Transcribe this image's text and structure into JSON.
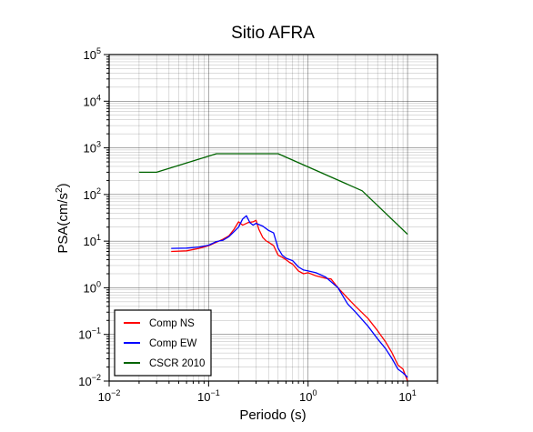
{
  "chart_data": {
    "type": "line",
    "title": "Sitio AFRA",
    "xlabel": "Periodo (s)",
    "ylabel": "PSA(cm/s²)",
    "ylabel_base": "PSA(cm/s",
    "ylabel_sup": "2",
    "ylabel_close": ")",
    "xscale": "log",
    "yscale": "log",
    "xlim": [
      0.01,
      20
    ],
    "ylim": [
      0.01,
      100000
    ],
    "grid": true,
    "legend_position": "bottom-left",
    "x_ticks": [
      {
        "base": "10",
        "exp": "−2",
        "value": 0.01
      },
      {
        "base": "10",
        "exp": "−1",
        "value": 0.1
      },
      {
        "base": "10",
        "exp": "0",
        "value": 1
      },
      {
        "base": "10",
        "exp": "1",
        "value": 10
      }
    ],
    "y_ticks": [
      {
        "base": "10",
        "exp": "−2",
        "value": 0.01
      },
      {
        "base": "10",
        "exp": "−1",
        "value": 0.1
      },
      {
        "base": "10",
        "exp": "0",
        "value": 1
      },
      {
        "base": "10",
        "exp": "1",
        "value": 10
      },
      {
        "base": "10",
        "exp": "2",
        "value": 100
      },
      {
        "base": "10",
        "exp": "3",
        "value": 1000
      },
      {
        "base": "10",
        "exp": "4",
        "value": 10000
      },
      {
        "base": "10",
        "exp": "5",
        "value": 100000
      }
    ],
    "series": [
      {
        "name": "Comp NS",
        "color": "#ff0000",
        "points": [
          [
            0.042,
            6.0
          ],
          [
            0.06,
            6.2
          ],
          [
            0.08,
            7.0
          ],
          [
            0.1,
            8.0
          ],
          [
            0.12,
            9.5
          ],
          [
            0.14,
            11
          ],
          [
            0.16,
            13
          ],
          [
            0.18,
            18
          ],
          [
            0.2,
            26
          ],
          [
            0.22,
            22
          ],
          [
            0.25,
            25
          ],
          [
            0.28,
            26
          ],
          [
            0.3,
            28
          ],
          [
            0.32,
            18
          ],
          [
            0.35,
            12
          ],
          [
            0.38,
            10
          ],
          [
            0.4,
            9.5
          ],
          [
            0.45,
            8
          ],
          [
            0.5,
            5
          ],
          [
            0.55,
            4.5
          ],
          [
            0.6,
            4
          ],
          [
            0.65,
            3.5
          ],
          [
            0.7,
            3.2
          ],
          [
            0.8,
            2.3
          ],
          [
            0.9,
            2.0
          ],
          [
            1.0,
            2.1
          ],
          [
            1.2,
            1.8
          ],
          [
            1.5,
            1.6
          ],
          [
            1.7,
            1.55
          ],
          [
            2.0,
            1.0
          ],
          [
            2.5,
            0.6
          ],
          [
            3.0,
            0.4
          ],
          [
            4.0,
            0.22
          ],
          [
            5.0,
            0.12
          ],
          [
            6.0,
            0.07
          ],
          [
            7.0,
            0.04
          ],
          [
            8.0,
            0.022
          ],
          [
            9.0,
            0.018
          ],
          [
            10.0,
            0.01
          ]
        ]
      },
      {
        "name": "Comp EW",
        "color": "#0000ff",
        "points": [
          [
            0.042,
            7.0
          ],
          [
            0.06,
            7.1
          ],
          [
            0.08,
            7.5
          ],
          [
            0.1,
            8.2
          ],
          [
            0.12,
            9.8
          ],
          [
            0.14,
            10.5
          ],
          [
            0.16,
            12.5
          ],
          [
            0.18,
            16
          ],
          [
            0.2,
            20
          ],
          [
            0.22,
            30
          ],
          [
            0.24,
            35
          ],
          [
            0.26,
            25
          ],
          [
            0.28,
            22
          ],
          [
            0.3,
            24
          ],
          [
            0.35,
            21
          ],
          [
            0.4,
            17
          ],
          [
            0.45,
            15
          ],
          [
            0.5,
            7
          ],
          [
            0.55,
            5
          ],
          [
            0.6,
            4.3
          ],
          [
            0.7,
            3.8
          ],
          [
            0.8,
            2.8
          ],
          [
            0.9,
            2.4
          ],
          [
            1.0,
            2.3
          ],
          [
            1.2,
            2.1
          ],
          [
            1.5,
            1.7
          ],
          [
            2.0,
            1.0
          ],
          [
            2.5,
            0.45
          ],
          [
            3.0,
            0.3
          ],
          [
            4.0,
            0.15
          ],
          [
            5.0,
            0.08
          ],
          [
            6.0,
            0.05
          ],
          [
            7.0,
            0.03
          ],
          [
            8.0,
            0.018
          ],
          [
            9.0,
            0.015
          ],
          [
            10.0,
            0.012
          ]
        ]
      },
      {
        "name": "CSCR 2010",
        "color": "#006400",
        "points": [
          [
            0.02,
            300
          ],
          [
            0.03,
            300
          ],
          [
            0.12,
            750
          ],
          [
            0.5,
            750
          ],
          [
            3.5,
            120
          ],
          [
            10.0,
            14
          ]
        ]
      }
    ]
  }
}
